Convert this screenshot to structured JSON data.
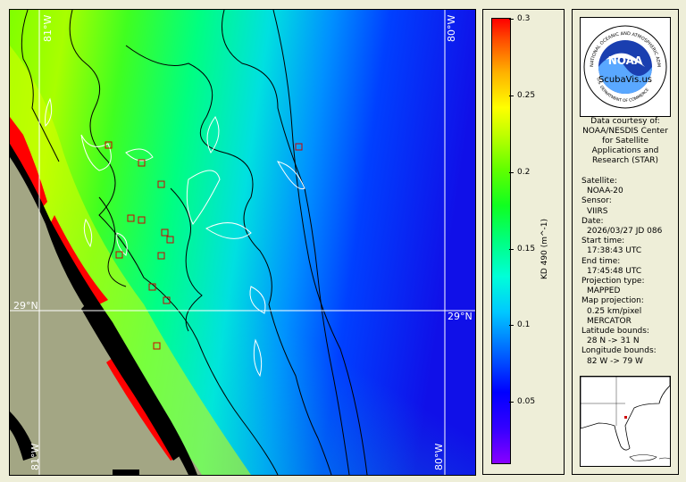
{
  "map": {
    "lat_label_left": "29°N",
    "lat_label_right": "29°N",
    "lon_label_top_left": "81°W",
    "lon_label_top_right": "80°W",
    "lon_label_bottom_left": "81°W",
    "lon_label_bottom_right": "80°W"
  },
  "colorbar": {
    "title": "KD 490 (m^-1)",
    "ticks": [
      "0.3",
      "0.25",
      "0.2",
      "0.15",
      "0.1",
      "0.05"
    ],
    "tick_values": [
      0.3,
      0.25,
      0.2,
      0.15,
      0.1,
      0.05
    ],
    "range": [
      0.01,
      0.3
    ],
    "colors": [
      "#8800ff",
      "#0000ff",
      "#00c8ff",
      "#00ff80",
      "#60ff00",
      "#ffff00",
      "#ff0000"
    ]
  },
  "logo": {
    "arc_text": "NATIONAL OCEANIC AND ATMOSPHERIC ADMINISTRATION",
    "bottom_text": "U.S. DEPARTMENT OF COMMERCE",
    "center": "NOAA",
    "overlay": "ScubaVis.us"
  },
  "info": {
    "courtesy": [
      "Data courtesy of:",
      "NOAA/NESDIS Center",
      "for Satellite",
      "Applications and",
      "Research (STAR)"
    ],
    "satellite_label": "Satellite:",
    "satellite": "NOAA-20",
    "sensor_label": "Sensor:",
    "sensor": "VIIRS",
    "date_label": "Date:",
    "date": "2026/03/27 JD 086",
    "start_label": "Start time:",
    "start": "17:38:43 UTC",
    "end_label": "End time:",
    "end": "17:45:48 UTC",
    "proj_label": "Projection type:",
    "proj": "MAPPED",
    "mapproj_label": "Map projection:",
    "mapproj_res": "0.25 km/pixel",
    "mapproj": "MERCATOR",
    "lat_label": "Latitude bounds:",
    "lat": "28 N -> 31 N",
    "lon_label": "Longitude bounds:",
    "lon": "82 W -> 79 W"
  },
  "colors": {
    "land": "#a3a684",
    "coast_black": "#000000",
    "marker": "#d00000"
  }
}
